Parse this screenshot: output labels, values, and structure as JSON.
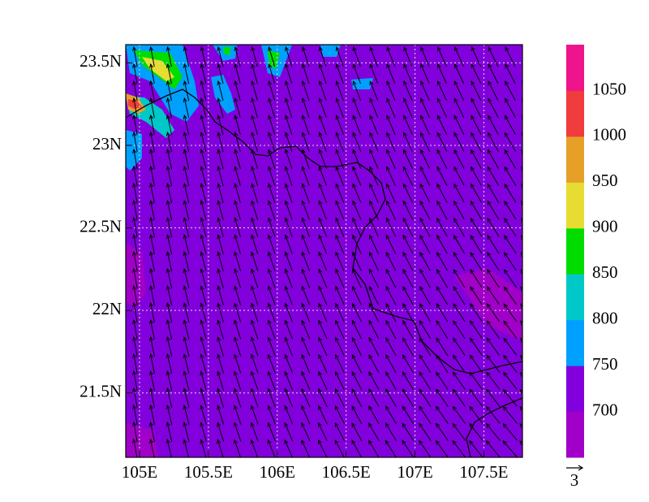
{
  "chart_data": {
    "type": "contour-map",
    "xlim": [
      104.9,
      107.78
    ],
    "ylim": [
      21.11,
      23.61
    ],
    "xticks": [
      {
        "value": 105,
        "label": "105E"
      },
      {
        "value": 105.5,
        "label": "105.5E"
      },
      {
        "value": 106,
        "label": "106E"
      },
      {
        "value": 106.5,
        "label": "106.5E"
      },
      {
        "value": 107,
        "label": "107E"
      },
      {
        "value": 107.5,
        "label": "107.5E"
      }
    ],
    "yticks": [
      {
        "value": 21.5,
        "label": "21.5N"
      },
      {
        "value": 22,
        "label": "22N"
      },
      {
        "value": 22.5,
        "label": "22.5N"
      },
      {
        "value": 23,
        "label": "23N"
      },
      {
        "value": 23.5,
        "label": "23.5N"
      }
    ],
    "grid": true,
    "colorbar": {
      "levels": [
        700,
        750,
        800,
        850,
        900,
        950,
        1000,
        1050
      ],
      "colors": [
        "#a000c8",
        "#8200dc",
        "#00a0ff",
        "#00c8c8",
        "#00dc00",
        "#e6dc32",
        "#e6a028",
        "#f03c3c",
        "#f0148c"
      ]
    },
    "reference_vector": 3
  }
}
